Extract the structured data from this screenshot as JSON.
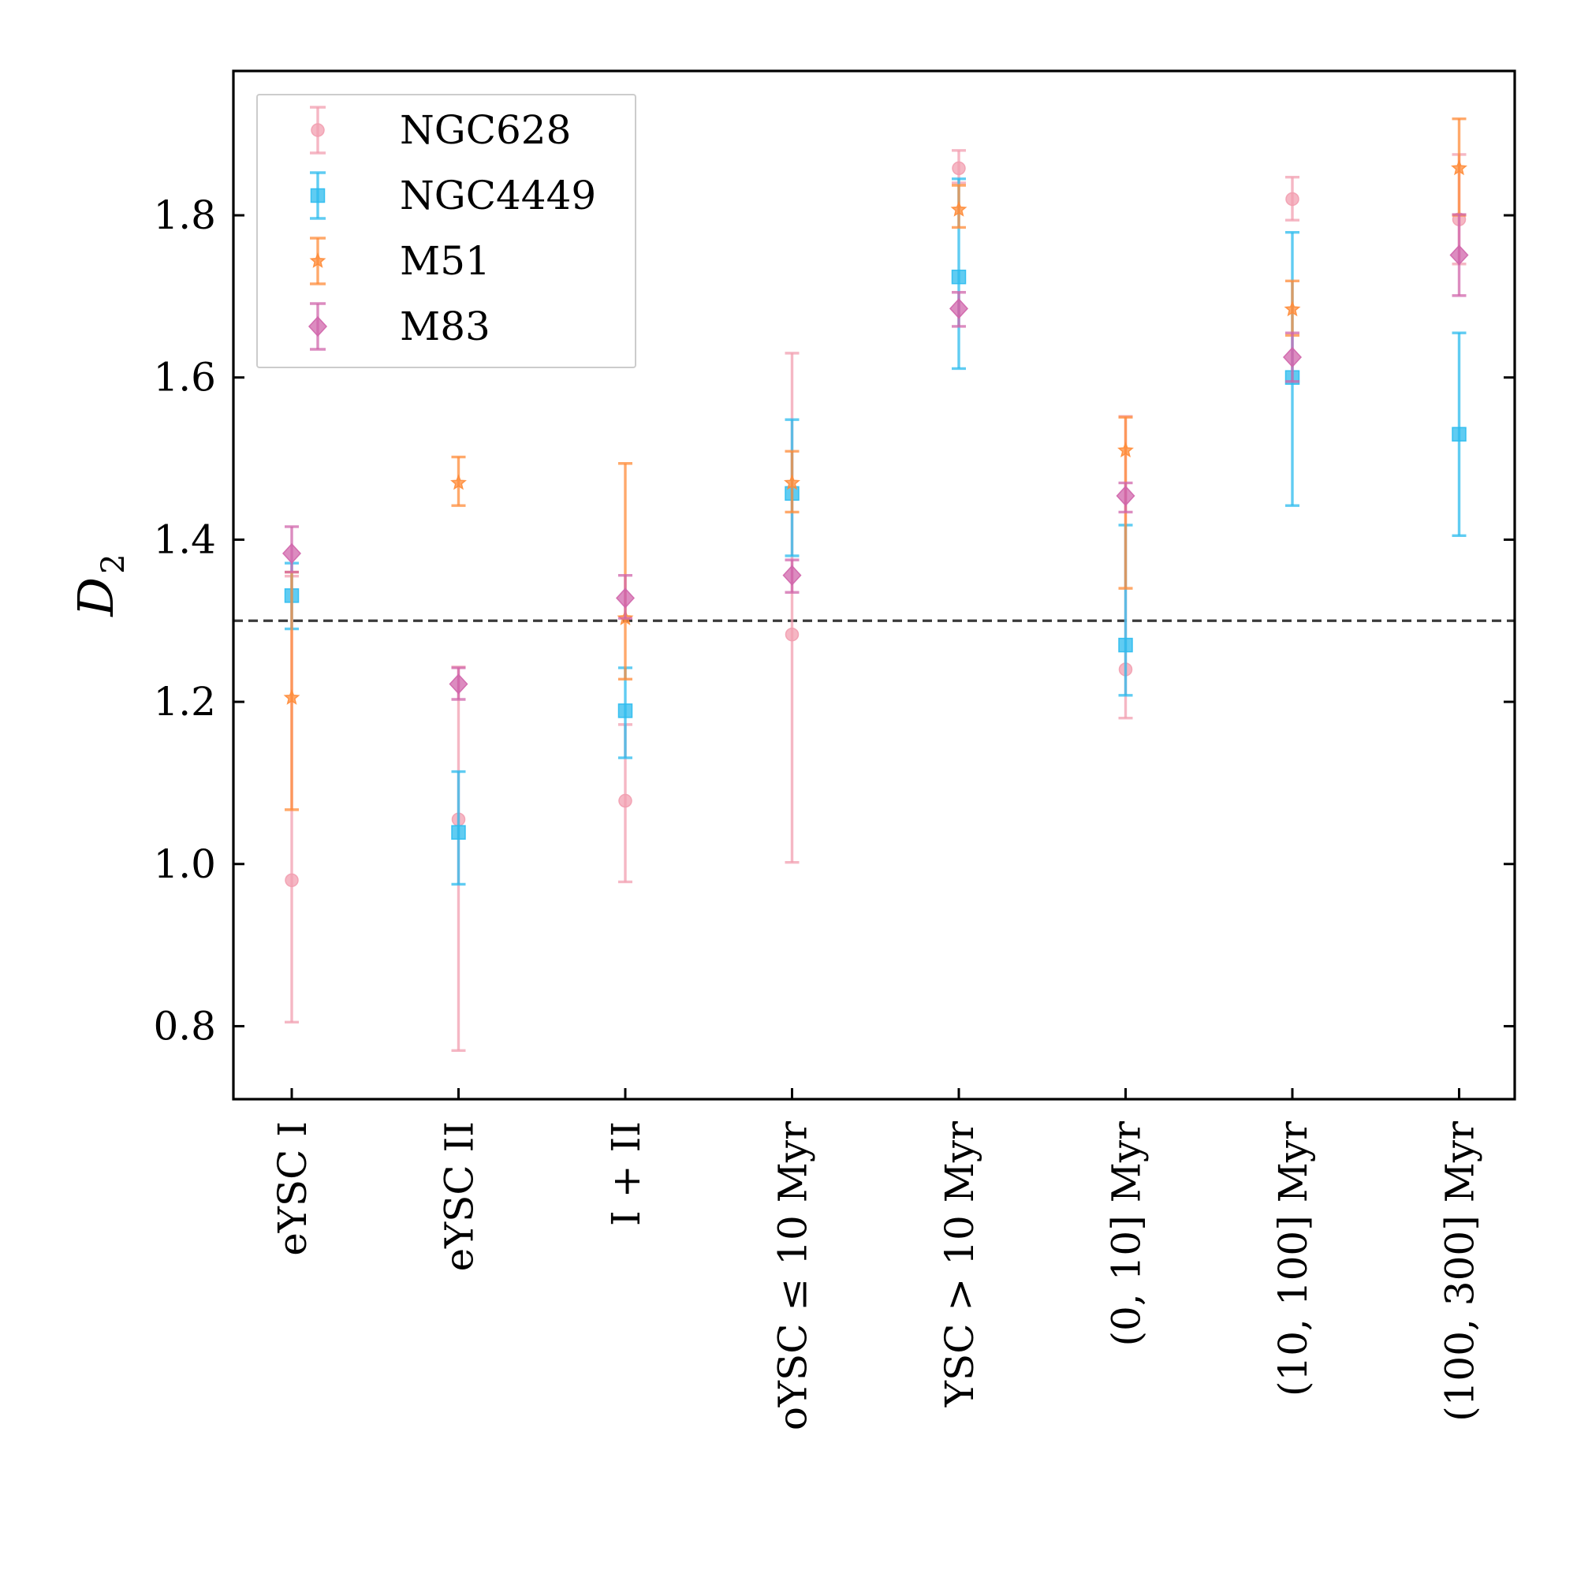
{
  "chart_data": {
    "type": "scatter",
    "title": "",
    "xlabel": "",
    "ylabel": "D",
    "ylabel_subscript": "2",
    "ylim": [
      0.71,
      1.978
    ],
    "yticks": [
      0.8,
      1.0,
      1.2,
      1.4,
      1.6,
      1.8
    ],
    "ytick_labels": [
      "0.8",
      "1.0",
      "1.2",
      "1.4",
      "1.6",
      "1.8"
    ],
    "reference_line": 1.3,
    "legend_position": "top-left",
    "categories": [
      "eYSC I",
      "eYSC II",
      "I + II",
      "oYSC ≤ 10 Myr",
      "YSC > 10 Myr",
      "(0, 10] Myr",
      "(10, 100] Myr",
      "(100, 300] Myr"
    ],
    "series": [
      {
        "name": "NGC628",
        "marker": "circle",
        "color": "#f29fb0",
        "values": [
          0.98,
          1.055,
          1.078,
          1.283,
          1.858,
          1.24,
          1.82,
          1.795
        ],
        "err_low": [
          0.175,
          0.285,
          0.1,
          0.281,
          0.018,
          0.06,
          0.026,
          0.055
        ],
        "err_high": [
          0.375,
          0.188,
          0.094,
          0.347,
          0.022,
          0.312,
          0.027,
          0.08
        ]
      },
      {
        "name": "NGC4449",
        "marker": "square",
        "color": "#2bbbee",
        "values": [
          1.331,
          1.039,
          1.189,
          1.457,
          1.724,
          1.27,
          1.6,
          1.53
        ],
        "err_low": [
          0.041,
          0.064,
          0.058,
          0.077,
          0.113,
          0.062,
          0.158,
          0.125
        ],
        "err_high": [
          0.04,
          0.075,
          0.053,
          0.091,
          0.121,
          0.148,
          0.179,
          0.125
        ]
      },
      {
        "name": "M51",
        "marker": "star",
        "color": "#ff8c3a",
        "values": [
          1.205,
          1.47,
          1.303,
          1.47,
          1.807,
          1.51,
          1.684,
          1.858
        ],
        "err_low": [
          0.138,
          0.028,
          0.075,
          0.036,
          0.022,
          0.17,
          0.032,
          0.058
        ],
        "err_high": [
          0.155,
          0.032,
          0.191,
          0.039,
          0.03,
          0.041,
          0.035,
          0.061
        ]
      },
      {
        "name": "M83",
        "marker": "diamond",
        "color": "#d065ab",
        "values": [
          1.383,
          1.222,
          1.328,
          1.356,
          1.685,
          1.454,
          1.625,
          1.751
        ],
        "err_low": [
          0.023,
          0.019,
          0.025,
          0.021,
          0.022,
          0.02,
          0.03,
          0.05
        ],
        "err_high": [
          0.033,
          0.02,
          0.028,
          0.019,
          0.02,
          0.016,
          0.03,
          0.05
        ]
      }
    ]
  }
}
